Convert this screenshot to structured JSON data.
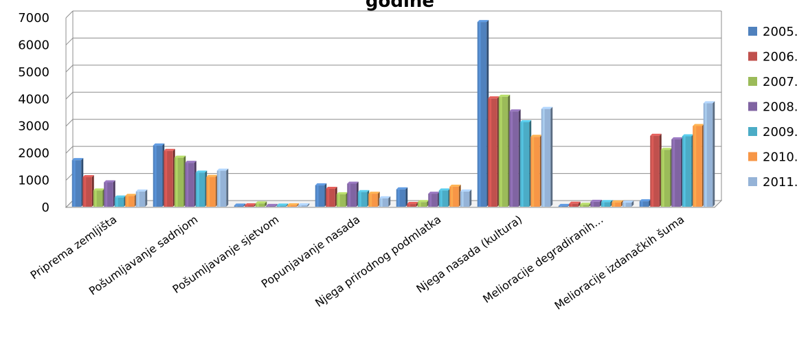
{
  "chart_data": {
    "type": "bar",
    "title": "godine",
    "categories": [
      "Priprema zemljišta",
      "Pošumljavanje sadnjom",
      "Pošumljavanje sjetvom",
      "Popunjavanje nasada",
      "Njega prirodnog podmlatka",
      "Njega nasada (kultura)",
      "Melioracije degradiranih...",
      "Melioracije izdanačkih šuma"
    ],
    "series": [
      {
        "name": "2005.",
        "color": "#4F81BD",
        "values": [
          1720,
          2260,
          40,
          790,
          640,
          6820,
          30,
          200
        ]
      },
      {
        "name": "2006.",
        "color": "#C0504D",
        "values": [
          1090,
          2060,
          50,
          660,
          100,
          4000,
          110,
          2620
        ]
      },
      {
        "name": "2007.",
        "color": "#9BBB59",
        "values": [
          600,
          1810,
          120,
          460,
          170,
          4060,
          70,
          2100
        ]
      },
      {
        "name": "2008.",
        "color": "#8064A2",
        "values": [
          900,
          1620,
          30,
          850,
          480,
          3520,
          180,
          2490
        ]
      },
      {
        "name": "2009.",
        "color": "#4BACC6",
        "values": [
          340,
          1260,
          40,
          540,
          600,
          3120,
          170,
          2600
        ]
      },
      {
        "name": "2010.",
        "color": "#F79646",
        "values": [
          400,
          1100,
          50,
          480,
          740,
          2580,
          160,
          2980
        ]
      },
      {
        "name": "2011.",
        "color": "#95B3D7",
        "values": [
          560,
          1330,
          50,
          310,
          560,
          3610,
          150,
          3820
        ]
      }
    ],
    "yticks": [
      "0",
      "1000",
      "2000",
      "3000",
      "4000",
      "5000",
      "6000",
      "7000"
    ],
    "ylim": [
      0,
      7000
    ],
    "grid": true,
    "legend": "right"
  }
}
